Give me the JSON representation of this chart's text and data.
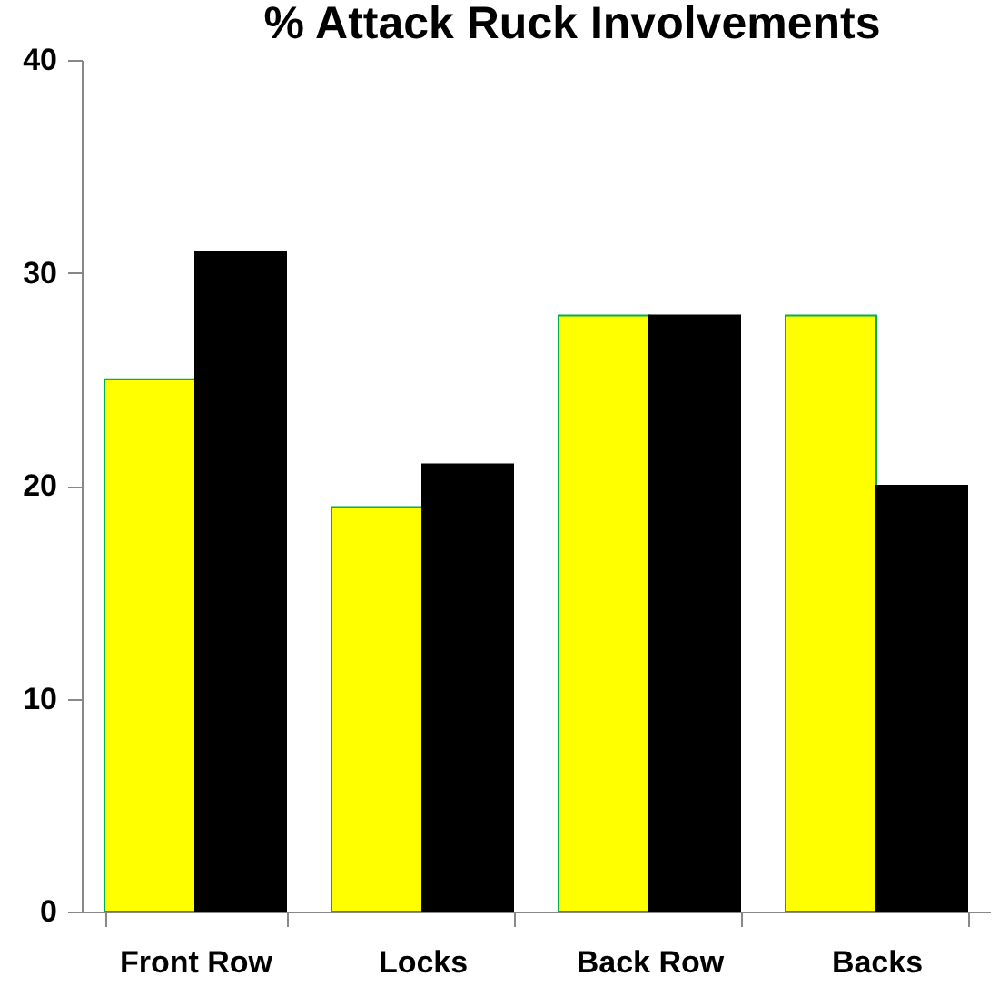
{
  "chart_data": {
    "type": "bar",
    "title": "% Attack Ruck Involvements",
    "categories": [
      "Front Row",
      "Locks",
      "Back Row",
      "Backs"
    ],
    "series": [
      {
        "color": "#ffff00",
        "values": [
          25,
          19,
          28,
          28
        ]
      },
      {
        "color": "#000000",
        "values": [
          31,
          21,
          28,
          20
        ]
      }
    ],
    "ylim": [
      0,
      40
    ],
    "yticks": [
      0,
      10,
      20,
      30,
      40
    ]
  }
}
